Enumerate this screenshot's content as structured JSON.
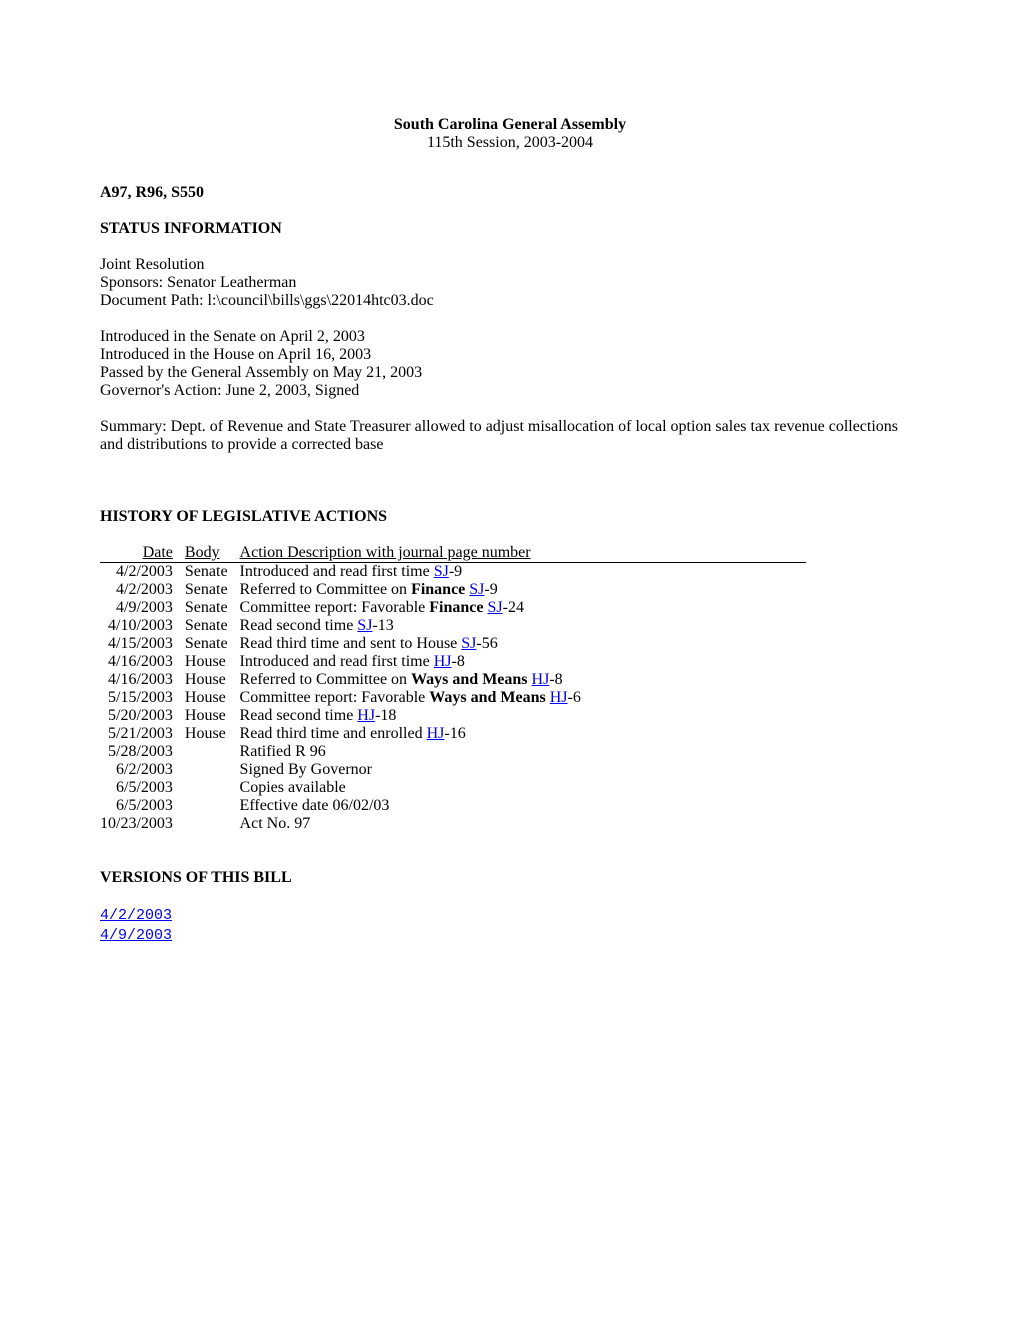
{
  "header": {
    "title": "South Carolina General Assembly",
    "session": "115th Session, 2003-2004"
  },
  "bill_id": "A97, R96, S550",
  "status": {
    "heading": "STATUS INFORMATION",
    "type": "Joint Resolution",
    "sponsors": "Sponsors: Senator Leatherman",
    "doc_path": "Document Path: l:\\council\\bills\\ggs\\22014htc03.doc",
    "intro_senate": "Introduced in the Senate on April 2, 2003",
    "intro_house": "Introduced in the House on April 16, 2003",
    "passed": "Passed by the General Assembly on May 21, 2003",
    "gov_action": "Governor's Action: June 2, 2003, Signed",
    "summary": "Summary: Dept. of Revenue and State Treasurer allowed to adjust misallocation of local option sales tax revenue collections and distributions to provide a corrected base"
  },
  "history": {
    "heading": "HISTORY OF LEGISLATIVE ACTIONS",
    "columns": {
      "date": "Date",
      "body": "Body",
      "action": "Action Description with journal page number"
    },
    "rows": [
      {
        "date": "4/2/2003",
        "body": "Senate",
        "pre": "Introduced and read first time ",
        "link": "SJ",
        "post": "-9"
      },
      {
        "date": "4/2/2003",
        "body": "Senate",
        "pre": "Referred to Committee on ",
        "bold": "Finance",
        "mid": " ",
        "link": "SJ",
        "post": "-9"
      },
      {
        "date": "4/9/2003",
        "body": "Senate",
        "pre": "Committee report: Favorable ",
        "bold": "Finance",
        "mid": " ",
        "link": "SJ",
        "post": "-24"
      },
      {
        "date": "4/10/2003",
        "body": "Senate",
        "pre": "Read second time ",
        "link": "SJ",
        "post": "-13"
      },
      {
        "date": "4/15/2003",
        "body": "Senate",
        "pre": "Read third time and sent to House ",
        "link": "SJ",
        "post": "-56"
      },
      {
        "date": "4/16/2003",
        "body": "House",
        "pre": "Introduced and read first time ",
        "link": "HJ",
        "post": "-8"
      },
      {
        "date": "4/16/2003",
        "body": "House",
        "pre": "Referred to Committee on ",
        "bold": "Ways and Means",
        "mid": " ",
        "link": "HJ",
        "post": "-8"
      },
      {
        "date": "5/15/2003",
        "body": "House",
        "pre": "Committee report: Favorable ",
        "bold": "Ways and Means",
        "mid": " ",
        "link": "HJ",
        "post": "-6"
      },
      {
        "date": "5/20/2003",
        "body": "House",
        "pre": "Read second time ",
        "link": "HJ",
        "post": "-18"
      },
      {
        "date": "5/21/2003",
        "body": "House",
        "pre": "Read third time and enrolled ",
        "link": "HJ",
        "post": "-16"
      },
      {
        "date": "5/28/2003",
        "body": "",
        "pre": "Ratified R 96"
      },
      {
        "date": "6/2/2003",
        "body": "",
        "pre": "Signed By Governor"
      },
      {
        "date": "6/5/2003",
        "body": "",
        "pre": "Copies available"
      },
      {
        "date": "6/5/2003",
        "body": "",
        "pre": "Effective date 06/02/03"
      },
      {
        "date": "10/23/2003",
        "body": "",
        "pre": "Act No. 97"
      }
    ]
  },
  "versions": {
    "heading": "VERSIONS OF THIS BILL",
    "items": [
      "4/2/2003",
      "4/9/2003"
    ]
  }
}
